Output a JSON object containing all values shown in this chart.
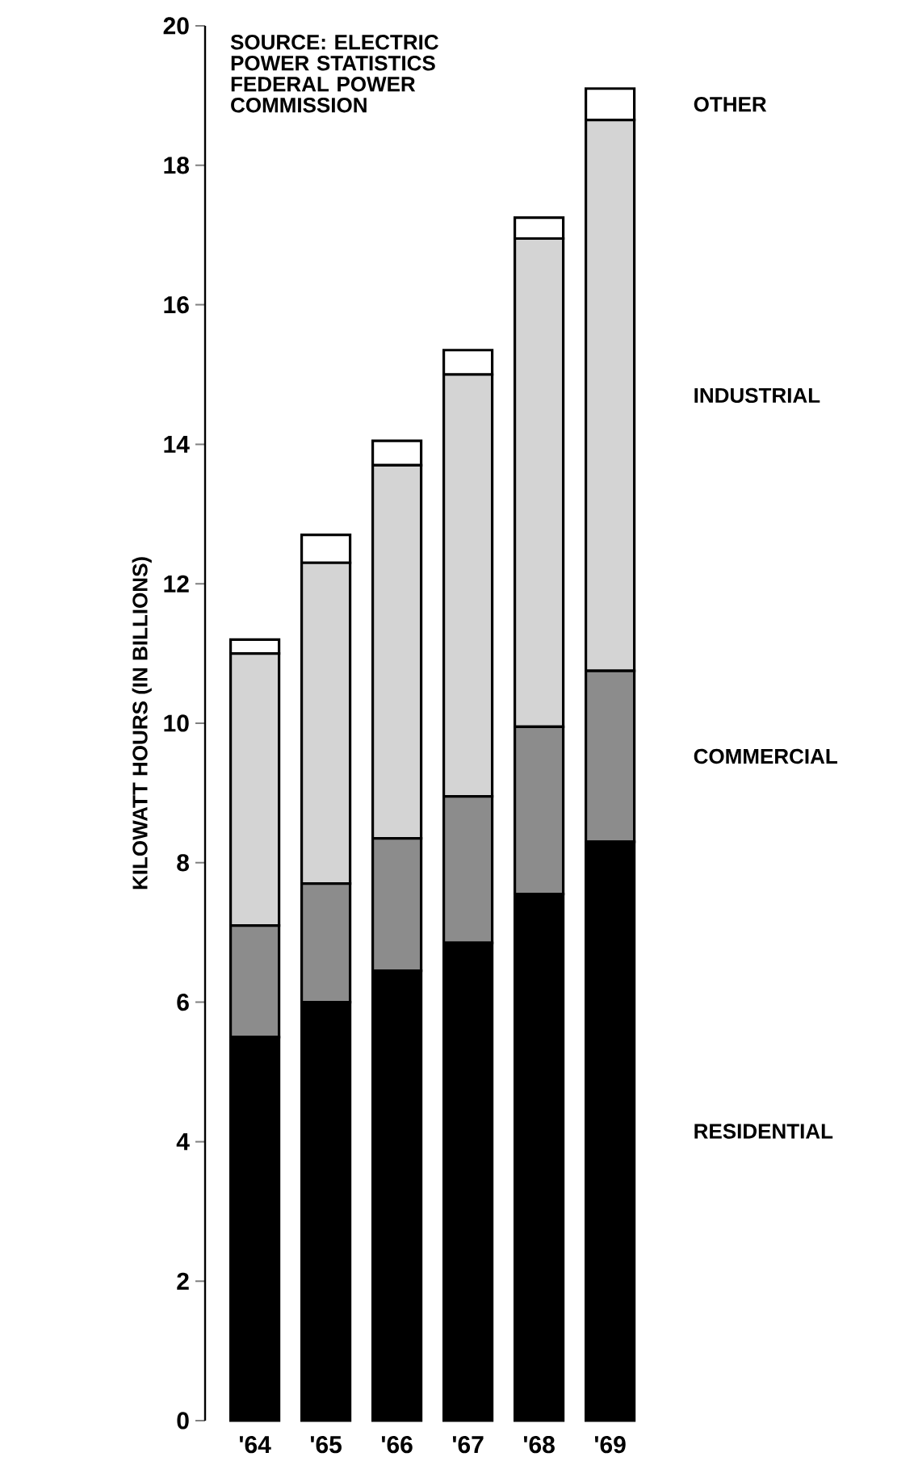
{
  "chart_data": {
    "type": "bar",
    "stacked": true,
    "categories": [
      "'64",
      "'65",
      "'66",
      "'67",
      "'68",
      "'69"
    ],
    "series": [
      {
        "name": "RESIDENTIAL",
        "color": "#000000",
        "values": [
          5.5,
          6.0,
          6.45,
          6.85,
          7.55,
          8.3
        ]
      },
      {
        "name": "COMMERCIAL",
        "color": "#8c8c8c",
        "values": [
          1.6,
          1.7,
          1.9,
          2.1,
          2.4,
          2.45
        ]
      },
      {
        "name": "INDUSTRIAL",
        "color": "#d4d4d4",
        "values": [
          3.9,
          4.6,
          5.35,
          6.05,
          7.0,
          7.9
        ]
      },
      {
        "name": "OTHER",
        "color": "#ffffff",
        "values": [
          0.2,
          0.4,
          0.35,
          0.35,
          0.3,
          0.45
        ]
      }
    ],
    "ylabel": "KILOWATT HOURS (IN BILLIONS)",
    "annotations": [
      "SOURCE: ELECTRIC POWER STATISTICS FEDERAL POWER COMMISSION"
    ],
    "ylim": [
      0,
      20
    ],
    "yticks": [
      0,
      2,
      4,
      6,
      8,
      10,
      12,
      14,
      16,
      18,
      20
    ],
    "grid": false
  }
}
